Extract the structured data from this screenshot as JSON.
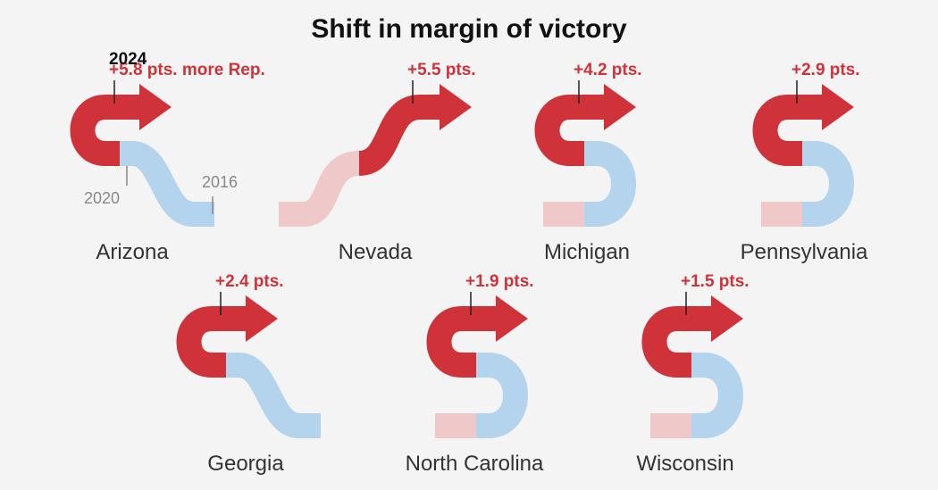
{
  "title": "Shift in margin of victory",
  "colors": {
    "rep_2024": "#cf3339",
    "dem_2020": "#b4d3ec",
    "rep_2016": "#efc8c9",
    "text": "#333333",
    "muted": "#888888",
    "background": "#f4f4f4"
  },
  "legend": {
    "year_2024": "2024",
    "year_2020": "2020",
    "year_2016": "2016"
  },
  "chart_data": {
    "type": "arrow-shift",
    "title": "Shift in margin of victory",
    "unit": "pts.",
    "states": [
      {
        "name": "Arizona",
        "shift_label": "+5.8 pts. more Rep.",
        "shift_2024": 5.8
      },
      {
        "name": "Nevada",
        "shift_label": "+5.5 pts.",
        "shift_2024": 5.5
      },
      {
        "name": "Michigan",
        "shift_label": "+4.2 pts.",
        "shift_2024": 4.2
      },
      {
        "name": "Pennsylvania",
        "shift_label": "+2.9 pts.",
        "shift_2024": 2.9
      },
      {
        "name": "Georgia",
        "shift_label": "+2.4 pts.",
        "shift_2024": 2.4
      },
      {
        "name": "North Carolina",
        "shift_label": "+1.9 pts.",
        "shift_2024": 1.9
      },
      {
        "name": "Wisconsin",
        "shift_label": "+1.5 pts.",
        "shift_2024": 1.5
      }
    ]
  }
}
